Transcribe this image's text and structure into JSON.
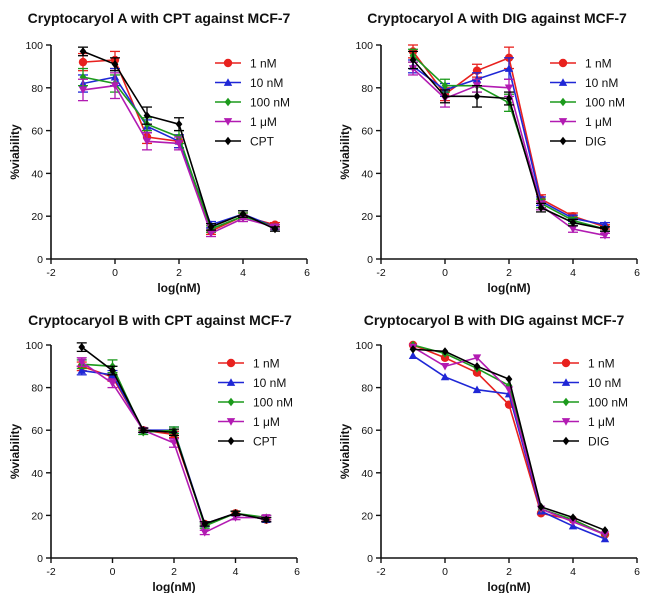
{
  "chart_data": [
    {
      "type": "line",
      "title": "Cryptocaryol A with CPT against MCF-7",
      "xlabel": "log(nM)",
      "ylabel": "%viability",
      "xlim": [
        -2,
        6
      ],
      "ylim": [
        0,
        100
      ],
      "xticks": [
        "-2",
        "0",
        "2",
        "4",
        "6"
      ],
      "yticks": [
        "0",
        "20",
        "40",
        "60",
        "80",
        "100"
      ],
      "x": [
        -1,
        0,
        1,
        2,
        3,
        4,
        5
      ],
      "error_bars": true,
      "legend": "top-right",
      "series": [
        {
          "name": "1 nM",
          "color": "#e8211e",
          "marker": "circle",
          "values": [
            92,
            93,
            57,
            55,
            13,
            20,
            16
          ],
          "errors": [
            4,
            4,
            3,
            3,
            1.5,
            1.5,
            1
          ]
        },
        {
          "name": "10 nM",
          "color": "#1f27d6",
          "marker": "triangle-up",
          "values": [
            82,
            85,
            62,
            55,
            16,
            21,
            15
          ],
          "errors": [
            4,
            4,
            3,
            3,
            1.5,
            1.5,
            1
          ]
        },
        {
          "name": "100 nM",
          "color": "#1c9a1c",
          "marker": "diamond",
          "values": [
            85,
            82,
            63,
            57,
            14,
            20,
            15
          ],
          "errors": [
            4,
            4,
            3,
            3,
            1.5,
            1.5,
            1
          ]
        },
        {
          "name": "1 μM",
          "color": "#b21bb2",
          "marker": "triangle-down",
          "values": [
            79,
            81,
            55,
            54,
            12,
            19,
            15
          ],
          "errors": [
            5,
            6,
            4,
            3,
            1.5,
            1.5,
            1
          ]
        },
        {
          "name": "CPT",
          "color": "#000000",
          "marker": "diamond",
          "values": [
            97,
            91,
            67,
            63,
            15,
            21,
            14
          ],
          "errors": [
            2,
            3,
            4,
            3,
            1.5,
            1.5,
            1
          ]
        }
      ]
    },
    {
      "type": "line",
      "title": "Cryptocaryol A with DIG against MCF-7",
      "xlabel": "log(nM)",
      "ylabel": "%viability",
      "xlim": [
        -2,
        6
      ],
      "ylim": [
        0,
        100
      ],
      "xticks": [
        "-2",
        "0",
        "2",
        "4",
        "6"
      ],
      "yticks": [
        "0",
        "20",
        "40",
        "60",
        "80",
        "100"
      ],
      "x": [
        -1,
        0,
        1,
        2,
        3,
        4,
        5
      ],
      "error_bars": true,
      "legend": "top-right",
      "series": [
        {
          "name": "1 nM",
          "color": "#e8211e",
          "marker": "circle",
          "values": [
            97,
            77,
            88,
            94,
            28,
            20,
            15
          ],
          "errors": [
            3,
            3,
            3,
            5,
            2,
            1.5,
            1
          ]
        },
        {
          "name": "10 nM",
          "color": "#1f27d6",
          "marker": "triangle-up",
          "values": [
            90,
            79,
            84,
            89,
            27,
            19,
            16
          ],
          "errors": [
            3,
            3,
            3,
            5,
            2,
            1.5,
            1
          ]
        },
        {
          "name": "100 nM",
          "color": "#1c9a1c",
          "marker": "diamond",
          "values": [
            95,
            81,
            81,
            73,
            26,
            18,
            14
          ],
          "errors": [
            3,
            3,
            3,
            4,
            2,
            1.5,
            1
          ]
        },
        {
          "name": "1 μM",
          "color": "#b21bb2",
          "marker": "triangle-down",
          "values": [
            89,
            75,
            81,
            80,
            25,
            14,
            11
          ],
          "errors": [
            3,
            4,
            3,
            4,
            2,
            1.5,
            1
          ]
        },
        {
          "name": "DIG",
          "color": "#000000",
          "marker": "diamond",
          "values": [
            93,
            76,
            76,
            75,
            24,
            17,
            14
          ],
          "errors": [
            4,
            3,
            5,
            3,
            2,
            1.5,
            1
          ]
        }
      ]
    },
    {
      "type": "line",
      "title": "Cryptocaryol B with CPT against MCF-7",
      "xlabel": "log(nM)",
      "ylabel": "%viability",
      "xlim": [
        -2,
        6
      ],
      "ylim": [
        0,
        100
      ],
      "xticks": [
        "-2",
        "0",
        "2",
        "4",
        "6"
      ],
      "yticks": [
        "0",
        "20",
        "40",
        "60",
        "80",
        "100"
      ],
      "x": [
        -1,
        0,
        1,
        2,
        3,
        4,
        5
      ],
      "error_bars": true,
      "legend": "top-right",
      "series": [
        {
          "name": "1 nM",
          "color": "#e8211e",
          "marker": "circle",
          "values": [
            90,
            85,
            60,
            58,
            16,
            21,
            18
          ],
          "errors": [
            2,
            2,
            1,
            1.5,
            1,
            1,
            1
          ]
        },
        {
          "name": "10 nM",
          "color": "#1f27d6",
          "marker": "triangle-up",
          "values": [
            88,
            86,
            60,
            60,
            16,
            21,
            18
          ],
          "errors": [
            2,
            2,
            1,
            1.5,
            1,
            1,
            1
          ]
        },
        {
          "name": "100 nM",
          "color": "#1c9a1c",
          "marker": "diamond",
          "values": [
            91,
            90,
            59,
            60,
            15,
            21,
            19
          ],
          "errors": [
            2,
            3,
            1,
            1.5,
            1,
            1,
            1
          ]
        },
        {
          "name": "1 μM",
          "color": "#b21bb2",
          "marker": "triangle-down",
          "values": [
            92,
            82,
            60,
            54,
            12,
            19,
            19
          ],
          "errors": [
            2,
            2,
            1,
            2,
            1,
            1,
            1
          ]
        },
        {
          "name": "CPT",
          "color": "#000000",
          "marker": "diamond",
          "values": [
            99,
            88,
            60,
            59,
            16,
            21,
            18
          ],
          "errors": [
            2,
            2,
            1,
            1.5,
            1,
            1,
            1
          ]
        }
      ]
    },
    {
      "type": "line",
      "title": "Cryptocaryol B with DIG against MCF-7",
      "xlabel": "log(nM)",
      "ylabel": "%viability",
      "xlim": [
        -2,
        6
      ],
      "ylim": [
        0,
        100
      ],
      "xticks": [
        "-2",
        "0",
        "2",
        "4",
        "6"
      ],
      "yticks": [
        "0",
        "20",
        "40",
        "60",
        "80",
        "100"
      ],
      "x": [
        -1,
        0,
        1,
        2,
        3,
        4,
        5
      ],
      "error_bars": false,
      "legend": "top-right",
      "series": [
        {
          "name": "1 nM",
          "color": "#e8211e",
          "marker": "circle",
          "values": [
            100,
            94,
            87,
            72,
            21,
            18,
            11
          ]
        },
        {
          "name": "10 nM",
          "color": "#1f27d6",
          "marker": "triangle-up",
          "values": [
            95,
            85,
            79,
            77,
            22,
            15,
            9
          ]
        },
        {
          "name": "100 nM",
          "color": "#1c9a1c",
          "marker": "diamond",
          "values": [
            100,
            96,
            89,
            81,
            23,
            18,
            11
          ]
        },
        {
          "name": "1 μM",
          "color": "#b21bb2",
          "marker": "triangle-down",
          "values": [
            99,
            90,
            94,
            79,
            23,
            17,
            11
          ]
        },
        {
          "name": "DIG",
          "color": "#000000",
          "marker": "diamond",
          "values": [
            98,
            97,
            90,
            84,
            24,
            19,
            13
          ]
        }
      ]
    }
  ]
}
